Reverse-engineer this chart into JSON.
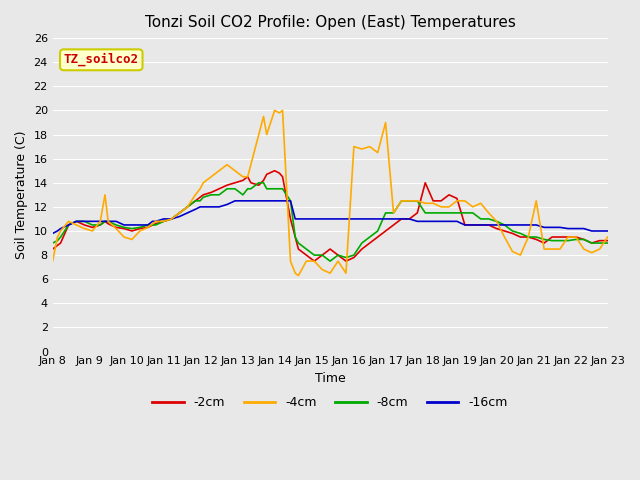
{
  "title": "Tonzi Soil CO2 Profile: Open (East) Temperatures",
  "xlabel": "Time",
  "ylabel": "Soil Temperature (C)",
  "ylim": [
    0,
    26
  ],
  "yticks": [
    0,
    2,
    4,
    6,
    8,
    10,
    12,
    14,
    16,
    18,
    20,
    22,
    24,
    26
  ],
  "annotation_text": "TZ_soilco2",
  "annotation_box_color": "#ffffcc",
  "annotation_text_color": "#cc0000",
  "annotation_border_color": "#cccc00",
  "bg_color": "#e8e8e8",
  "plot_bg_color": "#e8e8e8",
  "series_colors": {
    "-2cm": "#dd0000",
    "-4cm": "#ffaa00",
    "-8cm": "#00aa00",
    "-16cm": "#0000cc"
  },
  "xticklabels": [
    "Jan 8",
    "Jan 9",
    "Jan 10",
    "Jan 11",
    "Jan 12",
    "Jan 13",
    "Jan 14",
    "Jan 15",
    "Jan 16",
    "Jan 17",
    "Jan 18",
    "Jan 19",
    "Jan 20",
    "Jan 21",
    "Jan 22",
    "Jan 23"
  ],
  "x_values_2cm": [
    0,
    0.3,
    0.5,
    1,
    1.5,
    2,
    2.5,
    3,
    3.3,
    3.5,
    4,
    4.5,
    5,
    5.5,
    6,
    6.3,
    6.5,
    7,
    7.5,
    8,
    8.5,
    9,
    9.3,
    9.5,
    10,
    10.5,
    11,
    11.5,
    12,
    12.3,
    12.5,
    13,
    13.3,
    13.5,
    14,
    14.3,
    14.5,
    15,
    15.3,
    15.5,
    16,
    16.5,
    17,
    17.5,
    18,
    18.5,
    19,
    19.5,
    20,
    20.5,
    21,
    21.5,
    22,
    22.5,
    23,
    23.5,
    24,
    24.5,
    25,
    25.5,
    26,
    26.5,
    27,
    27.5,
    28,
    28.5,
    29,
    29.5,
    30,
    30.5,
    31,
    31.5,
    32,
    32.5,
    33,
    33.5,
    34,
    34.5,
    35
  ],
  "y_2cm": [
    8.5,
    8.8,
    9.0,
    10.5,
    10.8,
    10.5,
    10.3,
    10.5,
    10.8,
    10.6,
    10.3,
    10.2,
    10.0,
    10.2,
    10.3,
    10.5,
    10.6,
    10.8,
    11.0,
    11.5,
    12.0,
    12.5,
    12.8,
    13.0,
    13.2,
    13.5,
    13.8,
    14.0,
    14.2,
    14.5,
    14.0,
    13.8,
    14.2,
    14.7,
    15.0,
    14.8,
    14.5,
    11.0,
    9.5,
    8.5,
    8.0,
    7.5,
    8.0,
    8.5,
    8.0,
    7.5,
    7.8,
    8.5,
    9.0,
    9.5,
    10.0,
    10.5,
    11.0,
    11.0,
    11.5,
    14.0,
    12.5,
    12.5,
    13.0,
    12.7,
    10.5,
    10.5,
    10.5,
    10.5,
    10.2,
    10.0,
    9.8,
    9.5,
    9.5,
    9.3,
    9.0,
    9.5,
    9.5,
    9.5,
    9.5,
    9.3,
    9.0,
    9.2,
    9.2
  ],
  "x_values_4cm": [
    0,
    0.3,
    0.5,
    1,
    1.5,
    2,
    2.5,
    3,
    3.3,
    3.5,
    4,
    4.5,
    5,
    5.5,
    6,
    6.3,
    6.5,
    7,
    7.5,
    8,
    8.5,
    9,
    9.3,
    9.5,
    10,
    10.5,
    11,
    11.5,
    12,
    12.3,
    12.5,
    13,
    13.3,
    13.5,
    14,
    14.3,
    14.5,
    15,
    15.3,
    15.5,
    16,
    16.5,
    17,
    17.5,
    18,
    18.5,
    19,
    19.5,
    20,
    20.5,
    21,
    21.5,
    22,
    22.5,
    23,
    23.5,
    24,
    24.5,
    25,
    25.5,
    26,
    26.5,
    27,
    27.5,
    28,
    28.5,
    29,
    29.5,
    30,
    30.5,
    31,
    31.5,
    32,
    32.5,
    33,
    33.5,
    34,
    34.5,
    35
  ],
  "y_4cm": [
    7.5,
    9.5,
    10.0,
    10.8,
    10.5,
    10.2,
    10.0,
    10.8,
    13.0,
    10.8,
    10.2,
    9.5,
    9.3,
    10.0,
    10.3,
    10.6,
    10.8,
    10.8,
    11.0,
    11.5,
    12.0,
    13.0,
    13.5,
    14.0,
    14.5,
    15.0,
    15.5,
    15.0,
    14.5,
    14.5,
    15.5,
    18.0,
    19.5,
    18.0,
    20.0,
    19.8,
    20.0,
    7.5,
    6.5,
    6.3,
    7.5,
    7.5,
    6.8,
    6.5,
    7.5,
    6.5,
    17.0,
    16.8,
    17.0,
    16.5,
    19.0,
    11.5,
    12.5,
    12.5,
    12.5,
    12.3,
    12.3,
    12.0,
    12.0,
    12.5,
    12.5,
    12.0,
    12.3,
    11.5,
    10.8,
    9.5,
    8.3,
    8.0,
    9.5,
    12.5,
    8.5,
    8.5,
    8.5,
    9.5,
    9.5,
    8.5,
    8.2,
    8.5,
    9.5
  ],
  "x_values_8cm": [
    0,
    0.3,
    0.5,
    1,
    1.5,
    2,
    2.5,
    3,
    3.3,
    3.5,
    4,
    4.5,
    5,
    5.5,
    6,
    6.3,
    6.5,
    7,
    7.5,
    8,
    8.5,
    9,
    9.3,
    9.5,
    10,
    10.5,
    11,
    11.5,
    12,
    12.3,
    12.5,
    13,
    13.3,
    13.5,
    14,
    14.3,
    14.5,
    15,
    15.3,
    15.5,
    16,
    16.5,
    17,
    17.5,
    18,
    18.5,
    19,
    19.5,
    20,
    20.5,
    21,
    21.5,
    22,
    22.5,
    23,
    23.5,
    24,
    24.5,
    25,
    25.5,
    26,
    26.5,
    27,
    27.5,
    28,
    28.5,
    29,
    29.5,
    30,
    30.5,
    31,
    31.5,
    32,
    32.5,
    33,
    33.5,
    34,
    34.5,
    35
  ],
  "y_8cm": [
    9.0,
    9.2,
    9.5,
    10.5,
    10.8,
    10.8,
    10.5,
    10.5,
    10.8,
    10.8,
    10.5,
    10.3,
    10.2,
    10.3,
    10.5,
    10.5,
    10.5,
    10.8,
    11.0,
    11.5,
    12.0,
    12.5,
    12.5,
    12.8,
    13.0,
    13.0,
    13.5,
    13.5,
    13.0,
    13.5,
    13.5,
    14.0,
    14.0,
    13.5,
    13.5,
    13.5,
    13.5,
    12.5,
    9.5,
    9.0,
    8.5,
    8.0,
    8.0,
    7.5,
    8.0,
    7.8,
    8.0,
    9.0,
    9.5,
    10.0,
    11.5,
    11.5,
    12.5,
    12.5,
    12.5,
    11.5,
    11.5,
    11.5,
    11.5,
    11.5,
    11.5,
    11.5,
    11.0,
    11.0,
    10.8,
    10.5,
    10.0,
    9.8,
    9.5,
    9.5,
    9.3,
    9.2,
    9.2,
    9.2,
    9.3,
    9.3,
    9.0,
    9.0,
    9.0
  ],
  "x_values_16cm": [
    0,
    0.3,
    0.5,
    1,
    1.5,
    2,
    2.5,
    3,
    3.3,
    3.5,
    4,
    4.5,
    5,
    5.5,
    6,
    6.3,
    6.5,
    7,
    7.5,
    8,
    8.5,
    9,
    9.3,
    9.5,
    10,
    10.5,
    11,
    11.5,
    12,
    12.3,
    12.5,
    13,
    13.3,
    13.5,
    14,
    14.3,
    14.5,
    15,
    15.3,
    15.5,
    16,
    16.5,
    17,
    17.5,
    18,
    18.5,
    19,
    19.5,
    20,
    20.5,
    21,
    21.5,
    22,
    22.5,
    23,
    23.5,
    24,
    24.5,
    25,
    25.5,
    26,
    26.5,
    27,
    27.5,
    28,
    28.5,
    29,
    29.5,
    30,
    30.5,
    31,
    31.5,
    32,
    32.5,
    33,
    33.5,
    34,
    34.5,
    35
  ],
  "y_16cm": [
    9.8,
    10.0,
    10.2,
    10.5,
    10.8,
    10.8,
    10.8,
    10.8,
    10.8,
    10.8,
    10.8,
    10.5,
    10.5,
    10.5,
    10.5,
    10.8,
    10.8,
    11.0,
    11.0,
    11.2,
    11.5,
    11.8,
    12.0,
    12.0,
    12.0,
    12.0,
    12.2,
    12.5,
    12.5,
    12.5,
    12.5,
    12.5,
    12.5,
    12.5,
    12.5,
    12.5,
    12.5,
    12.5,
    11.0,
    11.0,
    11.0,
    11.0,
    11.0,
    11.0,
    11.0,
    11.0,
    11.0,
    11.0,
    11.0,
    11.0,
    11.0,
    11.0,
    11.0,
    11.0,
    10.8,
    10.8,
    10.8,
    10.8,
    10.8,
    10.8,
    10.5,
    10.5,
    10.5,
    10.5,
    10.5,
    10.5,
    10.5,
    10.5,
    10.5,
    10.5,
    10.3,
    10.3,
    10.3,
    10.2,
    10.2,
    10.2,
    10.0,
    10.0,
    10.0
  ]
}
